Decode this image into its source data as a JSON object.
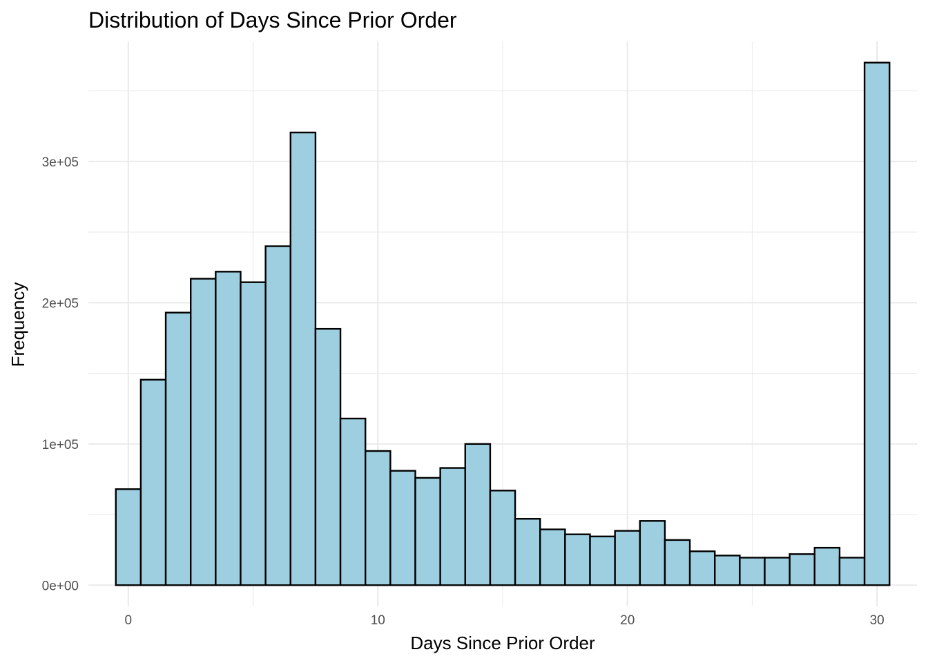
{
  "chart_data": {
    "type": "bar",
    "title": "Distribution of Days Since Prior Order",
    "xlabel": "Days Since Prior Order",
    "ylabel": "Frequency",
    "x_ticks": [
      0,
      10,
      20,
      30
    ],
    "x_tick_labels": [
      "0",
      "10",
      "20",
      "30"
    ],
    "y_ticks": [
      0,
      100000,
      200000,
      300000
    ],
    "y_tick_labels": [
      "0e+00",
      "1e+05",
      "2e+05",
      "3e+05"
    ],
    "xlim": [
      -1.6,
      31.6
    ],
    "ylim": [
      -15000,
      385000
    ],
    "grid": true,
    "bar_fill": "#9ecfe0",
    "bar_edge": "#000000",
    "x": [
      0,
      1,
      2,
      3,
      4,
      5,
      6,
      7,
      8,
      9,
      10,
      11,
      12,
      13,
      14,
      15,
      16,
      17,
      18,
      19,
      20,
      21,
      22,
      23,
      24,
      25,
      26,
      27,
      28,
      29,
      30
    ],
    "values": [
      68000,
      145500,
      193000,
      217000,
      222000,
      214500,
      240000,
      320500,
      181500,
      118000,
      95000,
      81000,
      76000,
      83000,
      100000,
      67000,
      47000,
      39500,
      36000,
      34500,
      38500,
      45500,
      32000,
      24000,
      21000,
      19500,
      19500,
      22000,
      26500,
      19500,
      370000
    ]
  }
}
